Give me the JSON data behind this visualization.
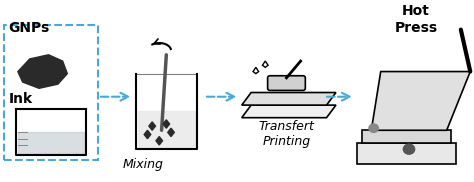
{
  "bg_color": "#ffffff",
  "text_color": "#000000",
  "arrow_color": "#4aa8d8",
  "labels": {
    "gnps": "GNPs",
    "ink": "Ink",
    "mixing": "Mixing",
    "transfer": "Transfert\nPrinting",
    "hotpress": "Hot\nPress"
  },
  "label_fontstyle": "italic",
  "label_fontsize": 9,
  "title_fontsize": 10,
  "figsize": [
    4.74,
    1.82
  ],
  "dpi": 100
}
